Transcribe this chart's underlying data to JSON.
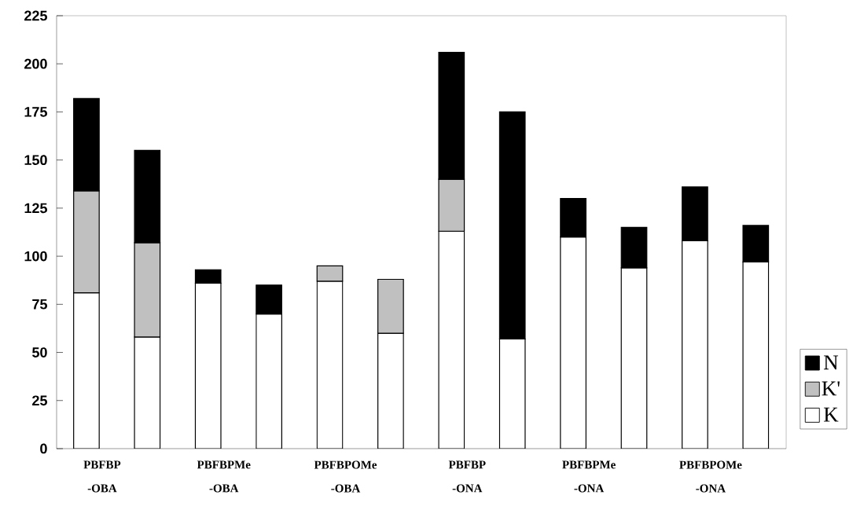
{
  "chart_data": {
    "type": "bar",
    "stacked": true,
    "categories": [
      "PBFBP -OBA",
      null,
      "PBFBPMe -OBA",
      null,
      "PBFBPOMe -OBA",
      null,
      "PBFBP -ONA",
      null,
      "PBFBPMe -ONA",
      null,
      "PBFBPOMe -ONA",
      null
    ],
    "series": [
      {
        "name": "K",
        "color": "#ffffff",
        "values": [
          81,
          58,
          86,
          70,
          87,
          60,
          113,
          57,
          110,
          94,
          108,
          97
        ]
      },
      {
        "name": "K'",
        "color": "#c0c0c0",
        "values": [
          53,
          49,
          null,
          null,
          8,
          28,
          27,
          null,
          null,
          null,
          null,
          null
        ]
      },
      {
        "name": "N",
        "color": "#000000",
        "values": [
          48,
          48,
          7,
          15,
          null,
          null,
          66,
          118,
          20,
          21,
          28,
          19
        ]
      }
    ],
    "ylim": [
      0,
      225
    ],
    "yticks": [
      0,
      25,
      50,
      75,
      100,
      125,
      150,
      175,
      200,
      225
    ],
    "legend": "right"
  }
}
